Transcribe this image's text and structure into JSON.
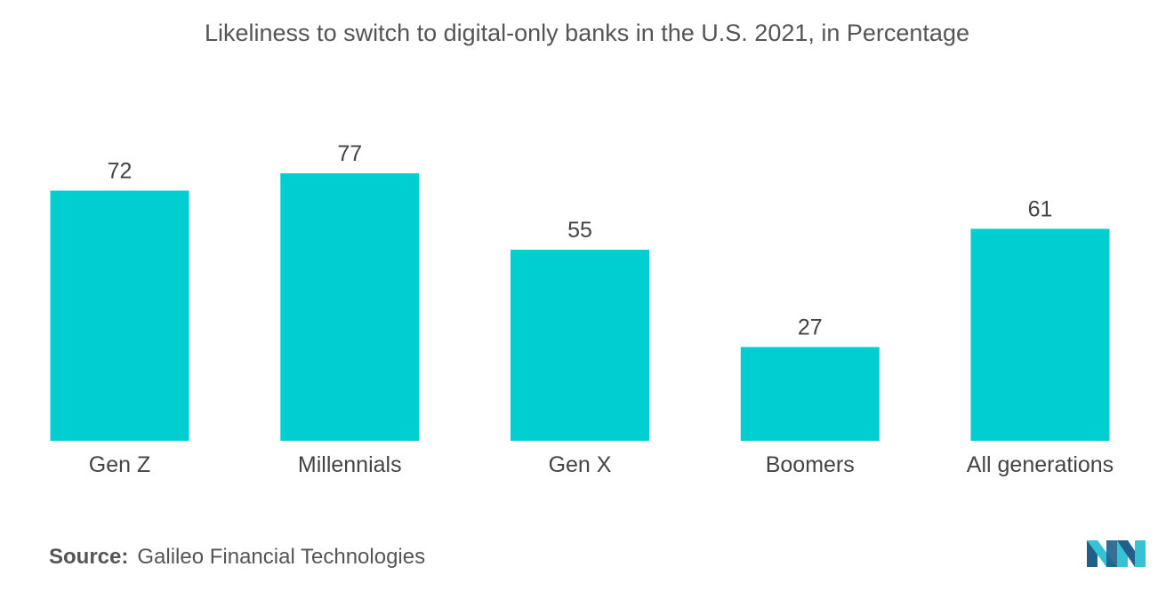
{
  "chart_data": {
    "type": "bar",
    "title": "Likeliness to switch to digital-only banks in the U.S. 2021, in Percentage",
    "categories": [
      "Gen Z",
      "Millennials",
      "Gen X",
      "Boomers",
      "All generations"
    ],
    "values": [
      72,
      77,
      55,
      27,
      61
    ],
    "xlabel": "",
    "ylabel": "",
    "ylim": [
      0,
      77
    ],
    "grid": false,
    "bar_color": "#00CED1"
  },
  "source": {
    "label": "Source:",
    "text": "Galileo Financial Technologies"
  },
  "colors": {
    "bar": "#00CED1",
    "text": "#444444",
    "logo_dark": "#1f5f8b",
    "logo_light": "#35c3d3"
  }
}
